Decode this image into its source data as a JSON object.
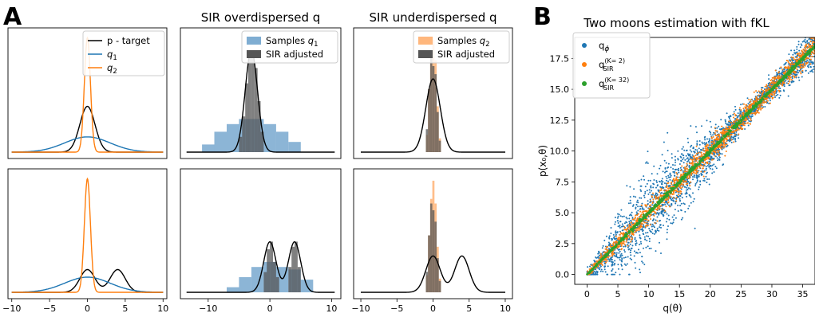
{
  "panel_labels": {
    "a": "A",
    "b": "B"
  },
  "colors": {
    "target": "#000000",
    "q1": "#1f77b4",
    "q2": "#ff7f0e",
    "q1_hist": "#7fadd2",
    "q2_hist": "#ffb77d",
    "sir_hist": "#555555",
    "q_phi": "#1f77b4",
    "q_sir_k2": "#ff7f0e",
    "q_sir_k32": "#2ca02c"
  },
  "chart_data": [
    {
      "type": "line",
      "panel": "A-top-left",
      "title": "",
      "xlim": [
        -10.5,
        10.5
      ],
      "legend_position": "top-right",
      "series": [
        {
          "name": "p - target",
          "kind": "normal",
          "mean": 0,
          "sd": 1,
          "color_key": "target"
        },
        {
          "name": "q1",
          "kind": "normal",
          "mean": 0,
          "sd": 3,
          "color_key": "q1"
        },
        {
          "name": "q2",
          "kind": "normal",
          "mean": 0,
          "sd": 0.4,
          "color_key": "q2"
        }
      ]
    },
    {
      "type": "bar",
      "panel": "A-top-middle",
      "title": "SIR overdispersed q",
      "xlim": [
        -14.5,
        11.5
      ],
      "legend_position": "top-right",
      "target": {
        "kind": "normal",
        "mean": -3,
        "sd": 1
      },
      "series": [
        {
          "name": "Samples q1",
          "color_key": "q1_hist",
          "bins": [
            [
              -11,
              -9,
              0.03
            ],
            [
              -9,
              -7,
              0.08
            ],
            [
              -7,
              -5,
              0.11
            ],
            [
              -5,
              -3,
              0.13
            ],
            [
              -3,
              -1,
              0.13
            ],
            [
              -1,
              1,
              0.11
            ],
            [
              1,
              3,
              0.08
            ],
            [
              3,
              5,
              0.04
            ]
          ]
        },
        {
          "name": "SIR adjusted",
          "color_key": "sir_hist",
          "bins": [
            [
              -5,
              -4.5,
              0.06
            ],
            [
              -4.5,
              -4,
              0.14
            ],
            [
              -4,
              -3.5,
              0.27
            ],
            [
              -3.5,
              -3,
              0.37
            ],
            [
              -3,
              -2.5,
              0.4
            ],
            [
              -2.5,
              -2,
              0.33
            ],
            [
              -2,
              -1.5,
              0.2
            ],
            [
              -1.5,
              -1,
              0.08
            ]
          ]
        }
      ]
    },
    {
      "type": "bar",
      "panel": "A-top-right",
      "title": "SIR underdispersed q",
      "xlim": [
        -11,
        11
      ],
      "legend_position": "top-right",
      "target": {
        "kind": "normal",
        "mean": 0,
        "sd": 1
      },
      "series": [
        {
          "name": "Samples q2",
          "color_key": "q2_hist",
          "bins": [
            [
              -1,
              -0.7,
              0.15
            ],
            [
              -0.7,
              -0.4,
              0.55
            ],
            [
              -0.4,
              -0.1,
              0.85
            ],
            [
              -0.1,
              0.2,
              0.98
            ],
            [
              0.2,
              0.5,
              0.8
            ],
            [
              0.5,
              0.8,
              0.4
            ],
            [
              0.8,
              1.1,
              0.12
            ]
          ]
        },
        {
          "name": "SIR adjusted",
          "color_key": "sir_hist",
          "bins": [
            [
              -1,
              -0.7,
              0.2
            ],
            [
              -0.7,
              -0.4,
              0.55
            ],
            [
              -0.4,
              -0.1,
              0.82
            ],
            [
              -0.1,
              0.2,
              0.75
            ],
            [
              0.2,
              0.5,
              0.68
            ],
            [
              0.5,
              0.8,
              0.35
            ],
            [
              0.8,
              1.1,
              0.1
            ]
          ]
        }
      ]
    },
    {
      "type": "line",
      "panel": "A-bottom-left",
      "title": "",
      "xlim": [
        -10.5,
        10.5
      ],
      "xticks": [
        -10,
        -5,
        0,
        5,
        10
      ],
      "series": [
        {
          "name": "p - target",
          "kind": "mixture",
          "components": [
            [
              0,
              1,
              0.5
            ],
            [
              4,
              1,
              0.5
            ]
          ],
          "color_key": "target"
        },
        {
          "name": "q1",
          "kind": "normal",
          "mean": 0,
          "sd": 3,
          "color_key": "q1"
        },
        {
          "name": "q2",
          "kind": "normal",
          "mean": 0,
          "sd": 0.4,
          "color_key": "q2"
        }
      ]
    },
    {
      "type": "bar",
      "panel": "A-bottom-middle",
      "title": "",
      "xlim": [
        -14.5,
        11.5
      ],
      "xticks": [
        -10,
        0,
        10
      ],
      "target": {
        "kind": "mixture",
        "components": [
          [
            0,
            1,
            0.5
          ],
          [
            4,
            1,
            0.5
          ]
        ]
      },
      "series": [
        {
          "name": "Samples q1",
          "color_key": "q1_hist",
          "bins": [
            [
              -7,
              -5,
              0.02
            ],
            [
              -5,
              -3,
              0.06
            ],
            [
              -3,
              -1,
              0.1
            ],
            [
              -1,
              1,
              0.12
            ],
            [
              1,
              3,
              0.1
            ],
            [
              3,
              5,
              0.09
            ],
            [
              5,
              7,
              0.05
            ]
          ]
        },
        {
          "name": "SIR adjusted",
          "color_key": "sir_hist",
          "bins": [
            [
              -1,
              -0.5,
              0.08
            ],
            [
              -0.5,
              0,
              0.17
            ],
            [
              0,
              0.5,
              0.2
            ],
            [
              0.5,
              1,
              0.12
            ],
            [
              1,
              1.5,
              0.06
            ],
            [
              3,
              3.5,
              0.1
            ],
            [
              3.5,
              4,
              0.18
            ],
            [
              4,
              4.5,
              0.2
            ],
            [
              4.5,
              5,
              0.1
            ]
          ]
        }
      ]
    },
    {
      "type": "bar",
      "panel": "A-bottom-right",
      "title": "",
      "xlim": [
        -11,
        11
      ],
      "xticks": [
        -10,
        -5,
        0,
        5,
        10
      ],
      "target": {
        "kind": "mixture",
        "components": [
          [
            0,
            1,
            0.5
          ],
          [
            4,
            1,
            0.5
          ]
        ]
      },
      "series": [
        {
          "name": "Samples q2",
          "color_key": "q2_hist",
          "bins": [
            [
              -1,
              -0.7,
              0.15
            ],
            [
              -0.7,
              -0.4,
              0.5
            ],
            [
              -0.4,
              -0.1,
              0.82
            ],
            [
              -0.1,
              0.2,
              0.98
            ],
            [
              0.2,
              0.5,
              0.78
            ],
            [
              0.5,
              0.8,
              0.4
            ],
            [
              0.8,
              1.1,
              0.12
            ]
          ]
        },
        {
          "name": "SIR adjusted",
          "color_key": "sir_hist",
          "bins": [
            [
              -1,
              -0.7,
              0.18
            ],
            [
              -0.7,
              -0.4,
              0.5
            ],
            [
              -0.4,
              -0.1,
              0.78
            ],
            [
              -0.1,
              0.2,
              0.72
            ],
            [
              0.2,
              0.5,
              0.62
            ],
            [
              0.5,
              0.8,
              0.3
            ],
            [
              0.8,
              1.1,
              0.1
            ]
          ]
        }
      ]
    },
    {
      "type": "scatter",
      "panel": "B",
      "title": "Two moons estimation with fKL",
      "xlabel": "q(θ)",
      "ylabel": "p(x₀,θ)",
      "xlim": [
        -2,
        37
      ],
      "ylim": [
        -0.8,
        19.2
      ],
      "xticks": [
        0,
        5,
        10,
        15,
        20,
        25,
        30,
        35
      ],
      "yticks": [
        0.0,
        2.5,
        5.0,
        7.5,
        10.0,
        12.5,
        15.0,
        17.5
      ],
      "legend_position": "top-left",
      "relation": {
        "slope": 0.5,
        "x_range": [
          0,
          37
        ]
      },
      "series": [
        {
          "name": "q",
          "sub": "ϕ",
          "color_key": "q_phi",
          "spread": 1.0,
          "count": 2600
        },
        {
          "name": "q",
          "sub": "SIR",
          "sup": "(K= 2)",
          "color_key": "q_sir_k2",
          "spread": 0.45,
          "count": 1800
        },
        {
          "name": "q",
          "sub": "SIR",
          "sup": "(K= 32)",
          "color_key": "q_sir_k32",
          "spread": 0.08,
          "count": 900
        }
      ]
    }
  ]
}
